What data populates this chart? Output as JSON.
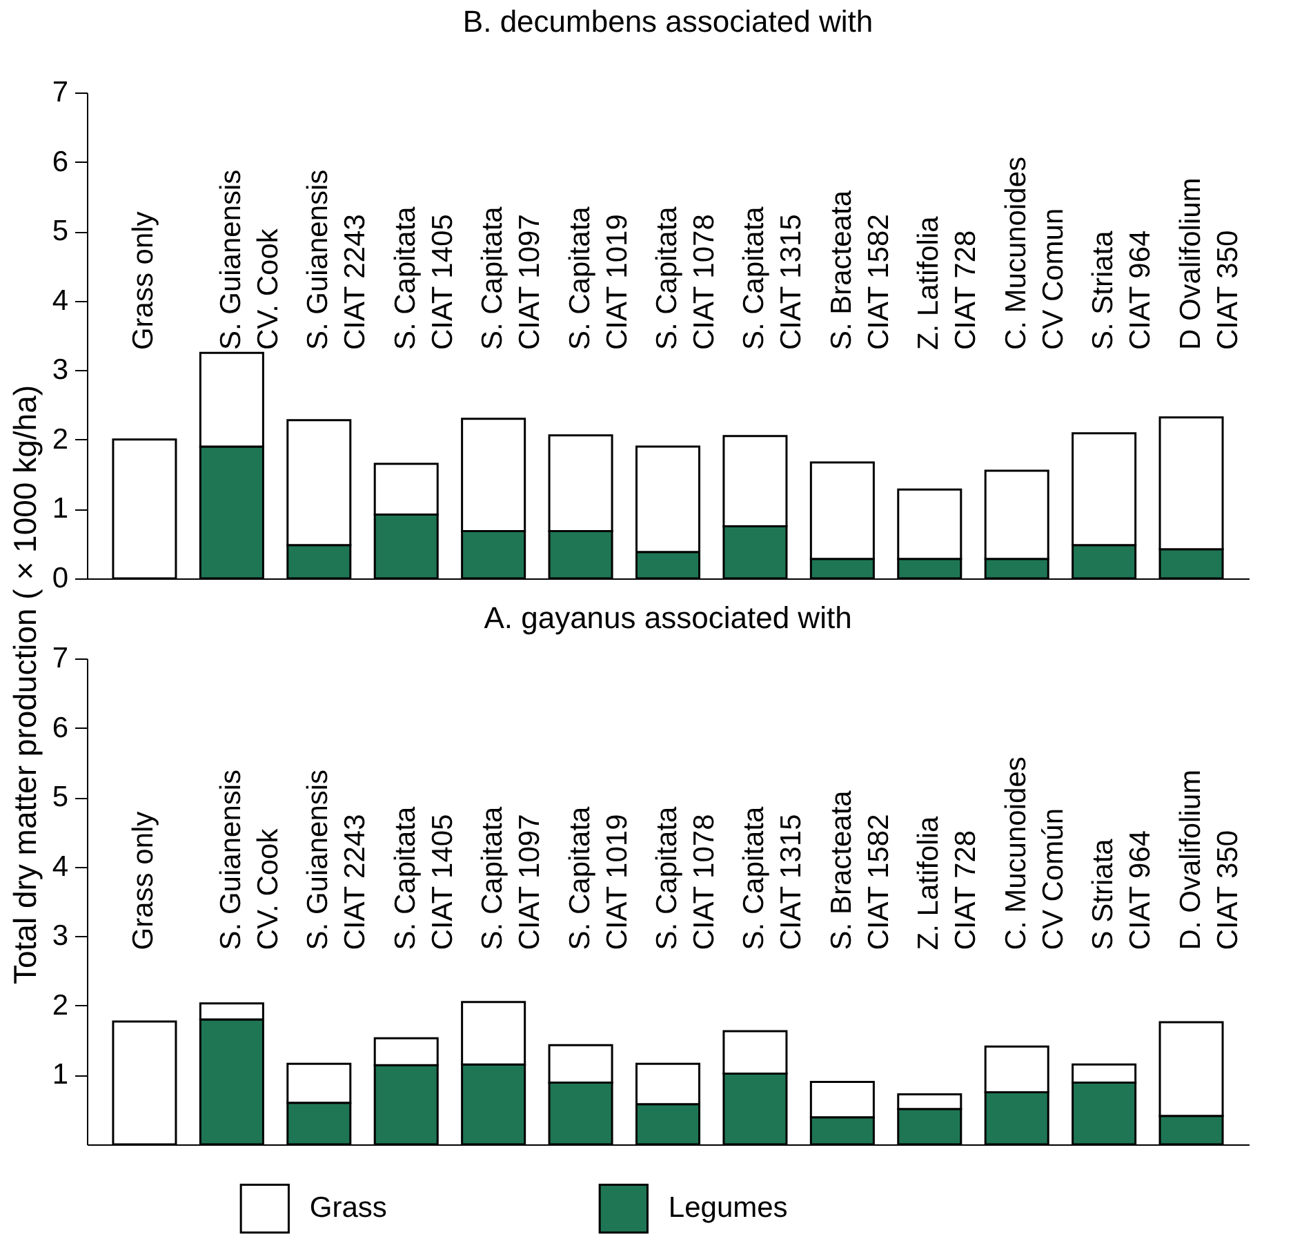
{
  "chart_data": [
    {
      "type": "bar",
      "title": "B. decumbens associated with",
      "ylabel": "Total dry matter production ( × 1000 kg/ha)",
      "stacked": true,
      "categories": [
        "Grass only",
        "S. Guianensis\nCV. Cook",
        "S. Guianensis\nCIAT 2243",
        "S. Capitata\nCIAT 1405",
        "S. Capitata\nCIAT 1097",
        "S. Capitata\nCIAT 1019",
        "S. Capitata\nCIAT 1078",
        "S. Capitata\nCIAT 1315",
        "S. Bracteata\nCIAT 1582",
        "Z. Latifolia\nCIAT 728",
        "C. Mucunoides\nCV Comun",
        "S. Striata\nCIAT 964",
        "D Ovalifolium\nCIAT 350"
      ],
      "series": [
        {
          "name": "Legumes",
          "color": "#1f7654",
          "values": [
            null,
            1.9,
            0.48,
            0.92,
            0.68,
            0.68,
            0.38,
            0.75,
            0.28,
            0.28,
            0.28,
            0.48,
            0.42
          ]
        },
        {
          "name": "Grass",
          "color": "#ffffff",
          "values": [
            2.0,
            1.35,
            1.8,
            0.73,
            1.62,
            1.38,
            1.52,
            1.3,
            1.39,
            1.0,
            1.27,
            1.61,
            1.9
          ]
        }
      ],
      "ylim": [
        0,
        7
      ],
      "yticks": [
        0,
        1,
        2,
        3,
        4,
        5,
        6,
        7
      ],
      "legend": "bottom"
    },
    {
      "type": "bar",
      "title": "A. gayanus associated with",
      "stacked": true,
      "categories": [
        "Grass only",
        "S. Guianensis\nCV. Cook",
        "S. Guianensis\nCIAT 2243",
        "S. Capitata\nCIAT 1405",
        "S. Capitata\nCIAT 1097",
        "S. Capitata\nCIAT 1019",
        "S. Capitata\nCIAT 1078",
        "S. Capitata\nCIAT 1315",
        "S. Bracteata\nCIAT 1582",
        "Z. Latifolia\nCIAT 728",
        "C. Mucunoides\nCV Común",
        "S Striata\nCIAT 964",
        "D. Ovalifolium\nCIAT 350"
      ],
      "series": [
        {
          "name": "Legumes",
          "color": "#1f7654",
          "values": [
            null,
            1.8,
            0.6,
            1.14,
            1.15,
            0.89,
            0.58,
            1.02,
            0.39,
            0.51,
            0.75,
            0.89,
            0.41
          ]
        },
        {
          "name": "Grass",
          "color": "#ffffff",
          "values": [
            1.77,
            0.23,
            0.56,
            0.39,
            0.9,
            0.54,
            0.58,
            0.61,
            0.51,
            0.21,
            0.66,
            0.26,
            1.35
          ]
        }
      ],
      "ylim": [
        0,
        7
      ],
      "yticks": [
        1,
        2,
        3,
        4,
        5,
        6,
        7
      ],
      "legend": "bottom"
    }
  ]
}
